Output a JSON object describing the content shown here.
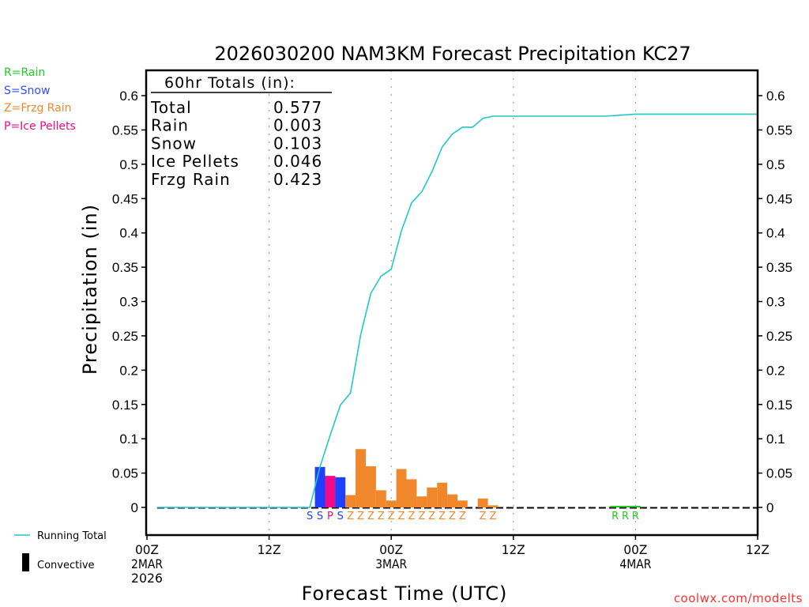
{
  "chart_data": {
    "type": "bar",
    "title": "2026030200 NAM3KM Forecast Precipitation KC27",
    "xlabel": "Forecast Time (UTC)",
    "ylabel": "Precipitation (in)",
    "ylim": [
      -0.035,
      0.635
    ],
    "xlim_hours": [
      0,
      60
    ],
    "y_ticks": [
      0,
      0.05,
      0.1,
      0.15,
      0.2,
      0.25,
      0.3,
      0.35,
      0.4,
      0.45,
      0.5,
      0.55,
      0.6
    ],
    "y_tick_labels": [
      "0",
      "0.05",
      "0.1",
      "0.15",
      "0.2",
      "0.25",
      "0.3",
      "0.35",
      "0.4",
      "0.45",
      "0.5",
      "0.55",
      "0.6"
    ],
    "x_ticks": [
      {
        "hour": 0,
        "lines": [
          "00Z",
          "2MAR",
          "2026"
        ]
      },
      {
        "hour": 12,
        "lines": [
          "12Z"
        ]
      },
      {
        "hour": 24,
        "lines": [
          "00Z",
          "3MAR"
        ]
      },
      {
        "hour": 36,
        "lines": [
          "12Z"
        ]
      },
      {
        "hour": 48,
        "lines": [
          "00Z",
          "4MAR"
        ]
      },
      {
        "hour": 60,
        "lines": [
          "12Z"
        ]
      }
    ],
    "grid": "dotted vertical at 12-hour ticks",
    "colors": {
      "R": "#22cc22",
      "S": "#2040ff",
      "Z": "#f0872a",
      "P": "#ee0a88",
      "running_total": "#20c8c8",
      "watermark": "#ff3030"
    },
    "type_legend": [
      {
        "code": "R",
        "label": "R=Rain"
      },
      {
        "code": "S",
        "label": "S=Snow"
      },
      {
        "code": "Z",
        "label": "Z=Frzg Rain"
      },
      {
        "code": "P",
        "label": "P=Ice Pellets"
      }
    ],
    "series_legend": [
      {
        "name": "running-total",
        "label": "Running Total"
      },
      {
        "name": "convective",
        "label": "Convective"
      }
    ],
    "bars": [
      {
        "hour": 17,
        "type": "S",
        "value": 0.059
      },
      {
        "hour": 18,
        "type": "P",
        "value": 0.046
      },
      {
        "hour": 19,
        "type": "S",
        "value": 0.044
      },
      {
        "hour": 20,
        "type": "Z",
        "value": 0.018
      },
      {
        "hour": 21,
        "type": "Z",
        "value": 0.085
      },
      {
        "hour": 22,
        "type": "Z",
        "value": 0.06
      },
      {
        "hour": 23,
        "type": "Z",
        "value": 0.025
      },
      {
        "hour": 24,
        "type": "Z",
        "value": 0.01
      },
      {
        "hour": 25,
        "type": "Z",
        "value": 0.056
      },
      {
        "hour": 26,
        "type": "Z",
        "value": 0.041
      },
      {
        "hour": 27,
        "type": "Z",
        "value": 0.016
      },
      {
        "hour": 28,
        "type": "Z",
        "value": 0.029
      },
      {
        "hour": 29,
        "type": "Z",
        "value": 0.036
      },
      {
        "hour": 30,
        "type": "Z",
        "value": 0.019
      },
      {
        "hour": 31,
        "type": "Z",
        "value": 0.01
      },
      {
        "hour": 33,
        "type": "Z",
        "value": 0.013
      },
      {
        "hour": 34,
        "type": "Z",
        "value": 0.003
      },
      {
        "hour": 46,
        "type": "R",
        "value": 0.001
      },
      {
        "hour": 47,
        "type": "R",
        "value": 0.001
      },
      {
        "hour": 48,
        "type": "R",
        "value": 0.001
      }
    ],
    "type_labels": [
      {
        "hour": 16,
        "code": "S"
      },
      {
        "hour": 17,
        "code": "S"
      },
      {
        "hour": 18,
        "code": "P"
      },
      {
        "hour": 19,
        "code": "S"
      },
      {
        "hour": 20,
        "code": "Z"
      },
      {
        "hour": 21,
        "code": "Z"
      },
      {
        "hour": 22,
        "code": "Z"
      },
      {
        "hour": 23,
        "code": "Z"
      },
      {
        "hour": 24,
        "code": "Z"
      },
      {
        "hour": 25,
        "code": "Z"
      },
      {
        "hour": 26,
        "code": "Z"
      },
      {
        "hour": 27,
        "code": "Z"
      },
      {
        "hour": 28,
        "code": "Z"
      },
      {
        "hour": 29,
        "code": "Z"
      },
      {
        "hour": 30,
        "code": "Z"
      },
      {
        "hour": 31,
        "code": "Z"
      },
      {
        "hour": 33,
        "code": "Z"
      },
      {
        "hour": 34,
        "code": "Z"
      },
      {
        "hour": 46,
        "code": "R"
      },
      {
        "hour": 47,
        "code": "R"
      },
      {
        "hour": 48,
        "code": "R"
      }
    ],
    "running_total": {
      "name": "Running Total",
      "start_hour": 1,
      "end_hour": 60,
      "final": 0.577
    },
    "totals_box": {
      "title": "60hr Totals (in):",
      "rows": [
        {
          "label": "Total",
          "value": "0.577"
        },
        {
          "label": "Rain",
          "value": "0.003"
        },
        {
          "label": "Snow",
          "value": "0.103"
        },
        {
          "label": "Ice Pellets",
          "value": "0.046"
        },
        {
          "label": "Frzg Rain",
          "value": "0.423"
        }
      ]
    },
    "watermark": "coolwx.com/modelts"
  }
}
